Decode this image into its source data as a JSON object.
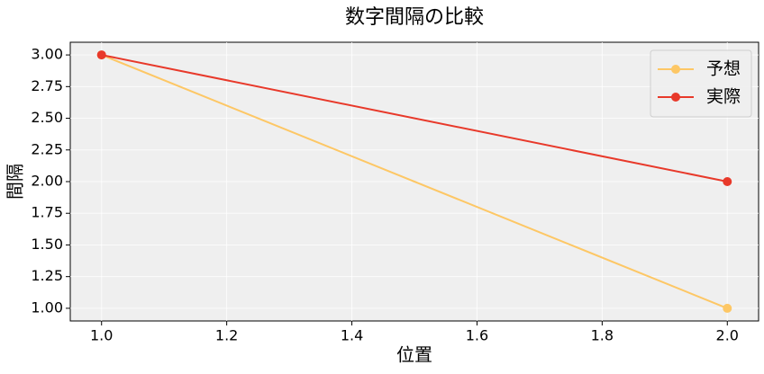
{
  "chart_data": {
    "type": "line",
    "title": "数字間隔の比較",
    "xlabel": "位置",
    "ylabel": "間隔",
    "x": [
      1.0,
      2.0
    ],
    "series": [
      {
        "name": "予想",
        "color": "#fdc765",
        "values": [
          3.0,
          1.0
        ]
      },
      {
        "name": "実際",
        "color": "#e8392a",
        "values": [
          3.0,
          2.0
        ]
      }
    ],
    "xlim": [
      0.95,
      2.05
    ],
    "xticks": [
      {
        "value": 1.0,
        "label": "1.0"
      },
      {
        "value": 1.2,
        "label": "1.2"
      },
      {
        "value": 1.4,
        "label": "1.4"
      },
      {
        "value": 1.6,
        "label": "1.6"
      },
      {
        "value": 1.8,
        "label": "1.8"
      },
      {
        "value": 2.0,
        "label": "2.0"
      }
    ],
    "ylim": [
      0.9,
      3.1
    ],
    "yticks": [
      {
        "value": 1.0,
        "label": "1.00"
      },
      {
        "value": 1.25,
        "label": "1.25"
      },
      {
        "value": 1.5,
        "label": "1.50"
      },
      {
        "value": 1.75,
        "label": "1.75"
      },
      {
        "value": 2.0,
        "label": "2.00"
      },
      {
        "value": 2.25,
        "label": "2.25"
      },
      {
        "value": 2.5,
        "label": "2.50"
      },
      {
        "value": 2.75,
        "label": "2.75"
      },
      {
        "value": 3.0,
        "label": "3.00"
      }
    ],
    "grid": true,
    "legend": "upper right"
  }
}
